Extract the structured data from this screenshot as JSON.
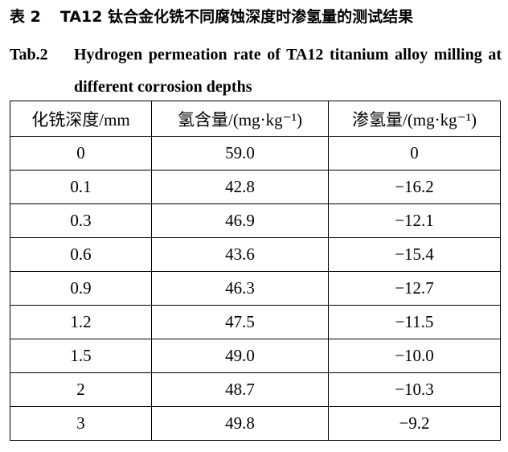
{
  "caption": {
    "cn_label": "表 2",
    "cn_title": "TA12 钛合金化铣不同腐蚀深度时渗氢量的测试结果",
    "en_label": "Tab.2",
    "en_title": "Hydrogen permeation rate of TA12 titanium alloy milling at different corrosion depths"
  },
  "table": {
    "header": [
      "化铣深度/mm",
      "氢含量/(mg·kg⁻¹)",
      "渗氢量/(mg·kg⁻¹)"
    ],
    "rows": [
      [
        "0",
        "59.0",
        "0"
      ],
      [
        "0.1",
        "42.8",
        "−16.2"
      ],
      [
        "0.3",
        "46.9",
        "−12.1"
      ],
      [
        "0.6",
        "43.6",
        "−15.4"
      ],
      [
        "0.9",
        "46.3",
        "−12.7"
      ],
      [
        "1.2",
        "47.5",
        "−11.5"
      ],
      [
        "1.5",
        "49.0",
        "−10.0"
      ],
      [
        "2",
        "48.7",
        "−10.3"
      ],
      [
        "3",
        "49.8",
        "−9.2"
      ]
    ]
  }
}
